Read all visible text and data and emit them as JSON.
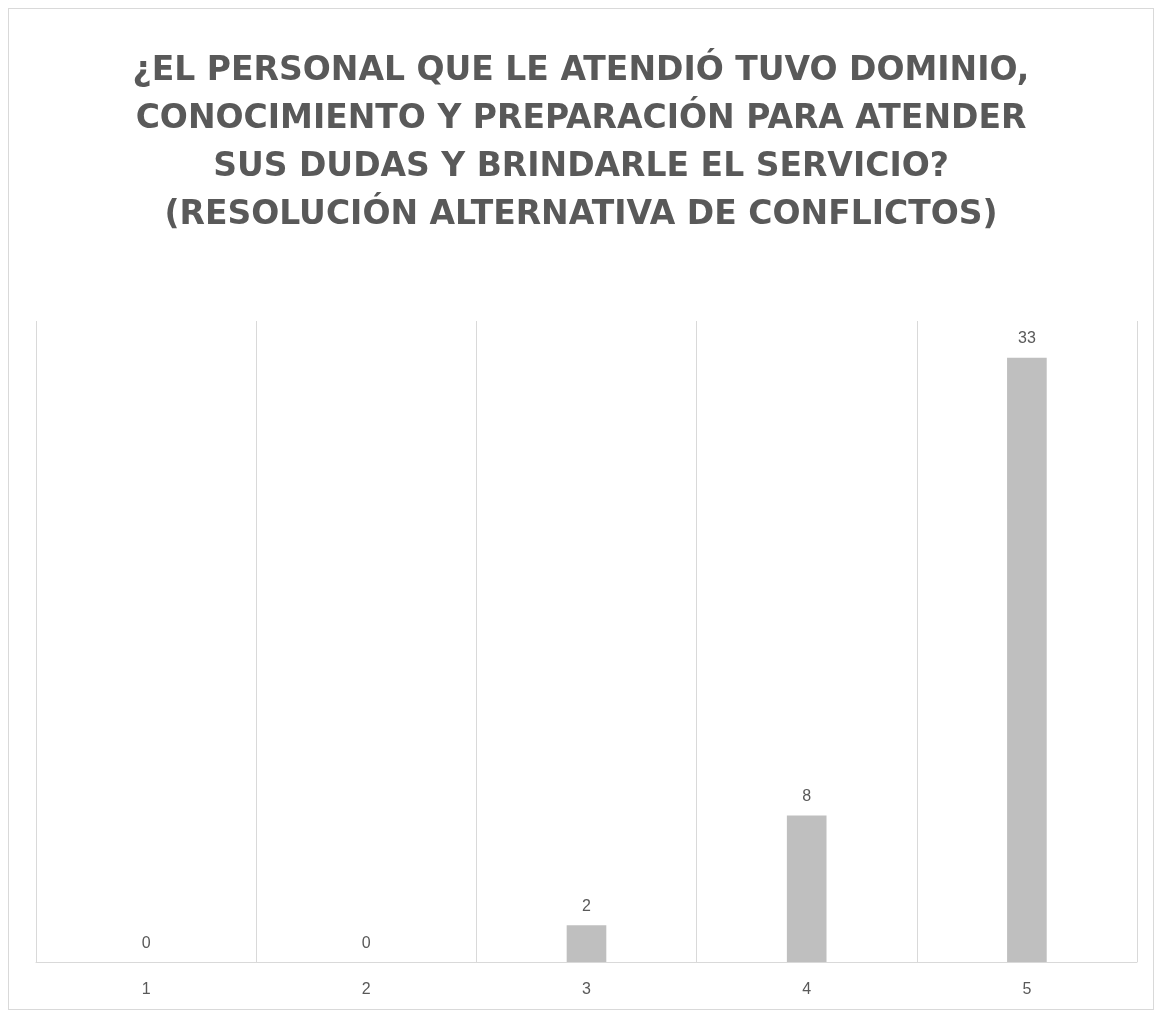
{
  "chart_data": {
    "type": "bar",
    "title": "¿EL PERSONAL QUE LE ATENDIÓ TUVO DOMINIO, CONOCIMIENTO Y PREPARACIÓN PARA ATENDER SUS DUDAS Y BRINDARLE EL SERVICIO?\n(RESOLUCIÓN ALTERNATIVA DE CONFLICTOS)",
    "categories": [
      "1",
      "2",
      "3",
      "4",
      "5"
    ],
    "values": [
      0,
      0,
      2,
      8,
      33
    ],
    "color": "#bfbfbf",
    "data_labels": true,
    "grid": "x"
  }
}
